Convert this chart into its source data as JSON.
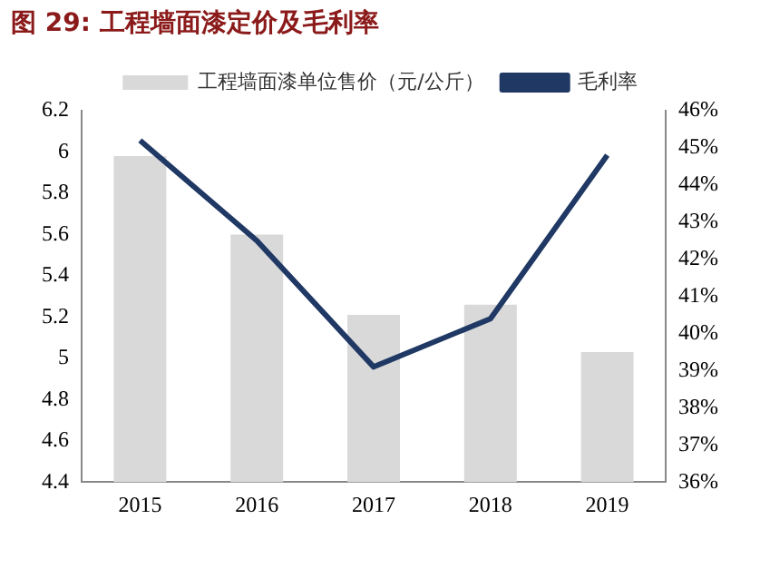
{
  "chart_data": {
    "type": "bar",
    "title": "图 29:  工程墙面漆定价及毛利率",
    "categories": [
      "2015",
      "2016",
      "2017",
      "2018",
      "2019"
    ],
    "series": [
      {
        "name": "工程墙面漆单位售价（元/公斤）",
        "color": "#d9d9d9",
        "values": [
          5.98,
          5.6,
          5.21,
          5.26,
          5.03
        ]
      },
      {
        "name": "毛利率",
        "type": "line",
        "axis": "y2",
        "color": "#1f3864",
        "values": [
          45.2,
          42.5,
          39.1,
          40.4,
          44.8
        ]
      }
    ],
    "ylim": [
      4.4,
      6.2
    ],
    "yticks": [
      4.4,
      4.6,
      4.8,
      5,
      5.2,
      5.4,
      5.6,
      5.8,
      6,
      6.2
    ],
    "y2lim": [
      36,
      46
    ],
    "y2ticks": [
      {
        "value": 36,
        "label": "36%"
      },
      {
        "value": 37,
        "label": "37%"
      },
      {
        "value": 38,
        "label": "38%"
      },
      {
        "value": 39,
        "label": "39%"
      },
      {
        "value": 40,
        "label": "40%"
      },
      {
        "value": 41,
        "label": "41%"
      },
      {
        "value": 42,
        "label": "42%"
      },
      {
        "value": 43,
        "label": "43%"
      },
      {
        "value": 44,
        "label": "44%"
      },
      {
        "value": 45,
        "label": "45%"
      },
      {
        "value": 46,
        "label": "46%"
      }
    ],
    "grid": false,
    "legend": "top",
    "marker": "none"
  }
}
